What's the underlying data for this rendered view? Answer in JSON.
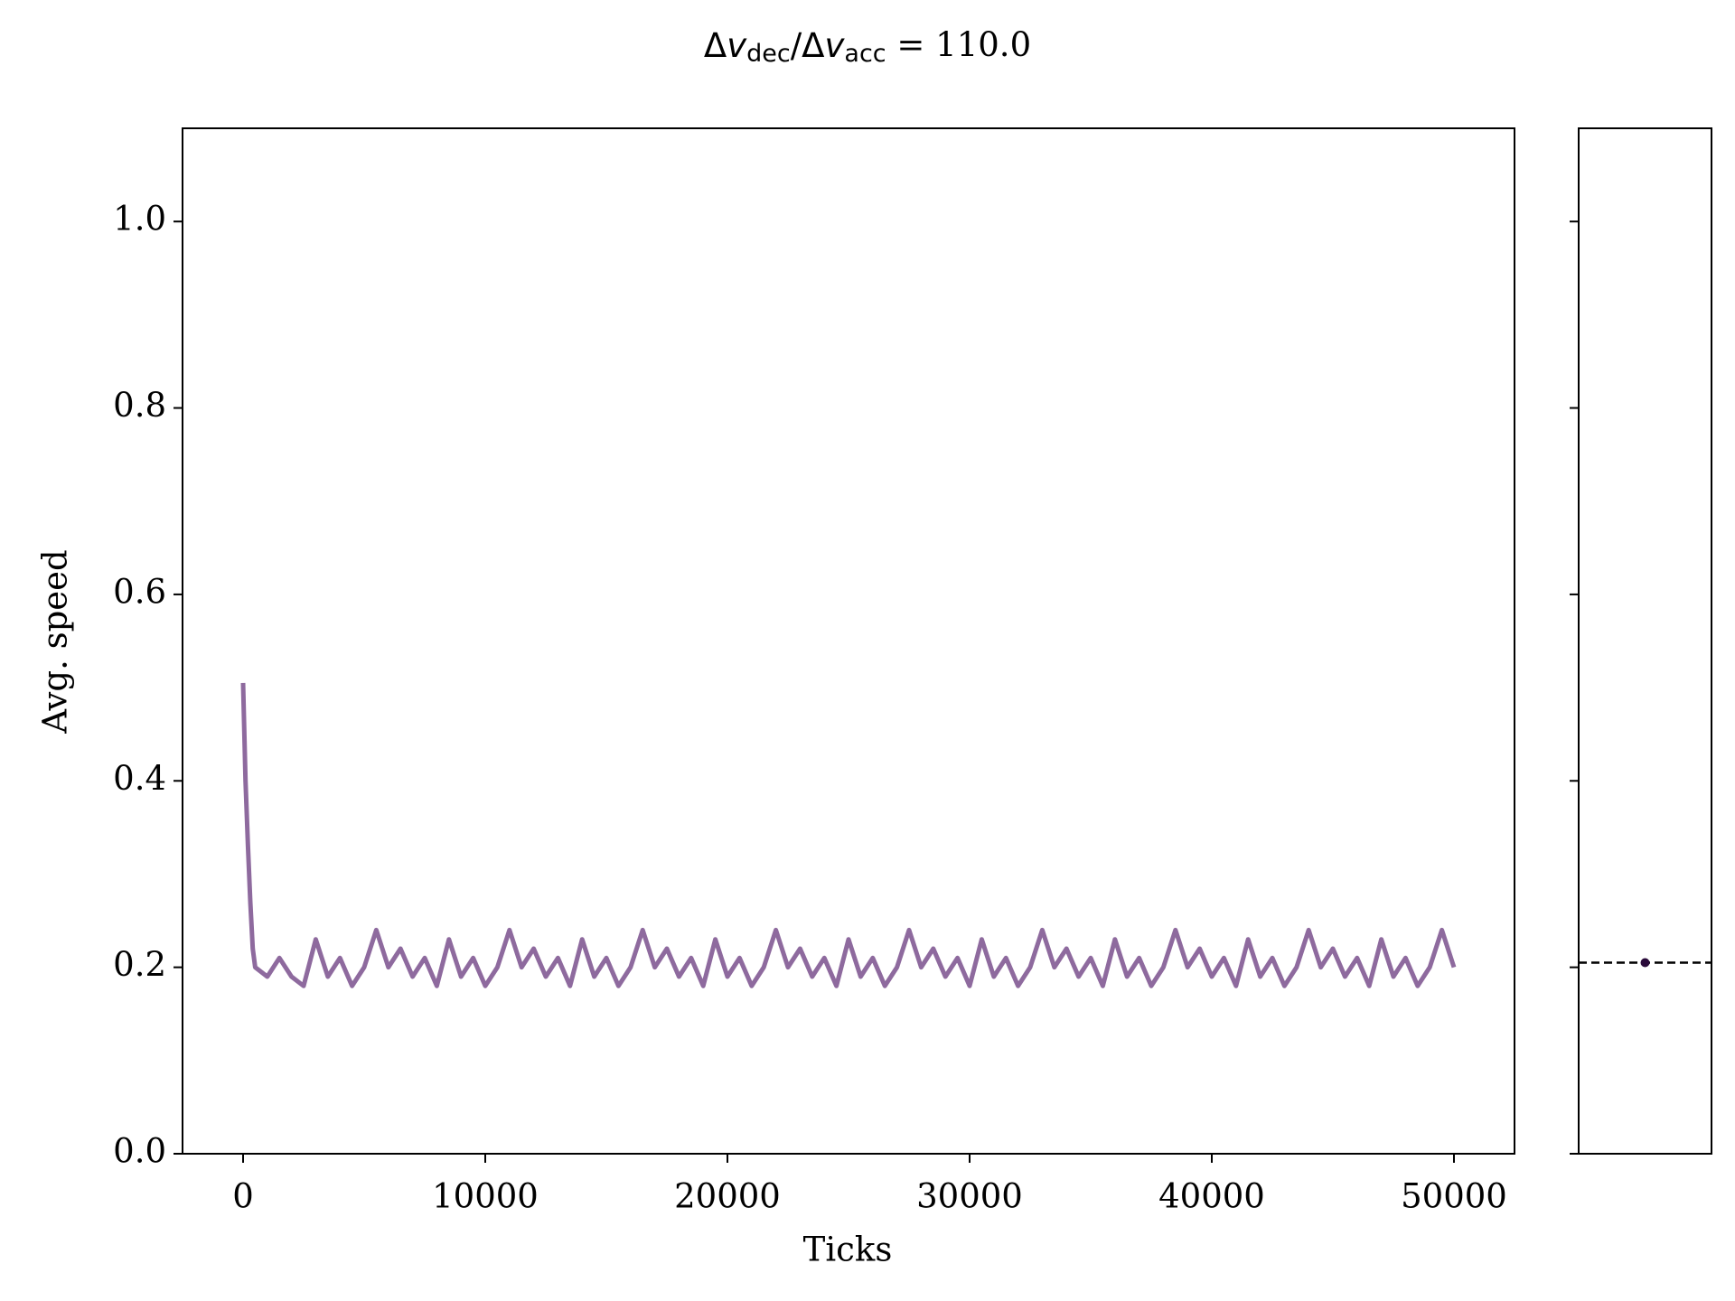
{
  "chart_data": [
    {
      "type": "line",
      "title": [
        "Δ",
        "v",
        "dec",
        "/Δ",
        "v",
        "acc",
        " = 110.0"
      ],
      "x_label": "Ticks",
      "y_label": "Avg. speed",
      "x": [
        0,
        100,
        200,
        300,
        400,
        500,
        1000,
        1500,
        2000,
        2500,
        3000,
        3500,
        4000,
        4500,
        5000,
        5500,
        6000,
        6500,
        7000,
        7500,
        8000,
        8500,
        9000,
        9500,
        10000,
        10500,
        11000,
        11500,
        12000,
        12500,
        13000,
        13500,
        14000,
        14500,
        15000,
        15500,
        16000,
        16500,
        17000,
        17500,
        18000,
        18500,
        19000,
        19500,
        20000,
        20500,
        21000,
        21500,
        22000,
        22500,
        23000,
        23500,
        24000,
        24500,
        25000,
        25500,
        26000,
        26500,
        27000,
        27500,
        28000,
        28500,
        29000,
        29500,
        30000,
        30500,
        31000,
        31500,
        32000,
        32500,
        33000,
        33500,
        34000,
        34500,
        35000,
        35500,
        36000,
        36500,
        37000,
        37500,
        38000,
        38500,
        39000,
        39500,
        40000,
        40500,
        41000,
        41500,
        42000,
        42500,
        43000,
        43500,
        44000,
        44500,
        45000,
        45500,
        46000,
        46500,
        47000,
        47500,
        48000,
        48500,
        49000,
        49500,
        50000
      ],
      "series": [
        {
          "color": "#8e6a9e",
          "values": [
            0.505,
            0.4,
            0.33,
            0.27,
            0.22,
            0.2,
            0.19,
            0.21,
            0.19,
            0.18,
            0.23,
            0.19,
            0.21,
            0.18,
            0.2,
            0.24,
            0.2,
            0.22,
            0.19,
            0.21,
            0.18,
            0.23,
            0.19,
            0.21,
            0.18,
            0.2,
            0.24,
            0.2,
            0.22,
            0.19,
            0.21,
            0.18,
            0.23,
            0.19,
            0.21,
            0.18,
            0.2,
            0.24,
            0.2,
            0.22,
            0.19,
            0.21,
            0.18,
            0.23,
            0.19,
            0.21,
            0.18,
            0.2,
            0.24,
            0.2,
            0.22,
            0.19,
            0.21,
            0.18,
            0.23,
            0.19,
            0.21,
            0.18,
            0.2,
            0.24,
            0.2,
            0.22,
            0.19,
            0.21,
            0.18,
            0.23,
            0.19,
            0.21,
            0.18,
            0.2,
            0.24,
            0.2,
            0.22,
            0.19,
            0.21,
            0.18,
            0.23,
            0.19,
            0.21,
            0.18,
            0.2,
            0.24,
            0.2,
            0.22,
            0.19,
            0.21,
            0.18,
            0.23,
            0.19,
            0.21,
            0.18,
            0.2,
            0.24,
            0.2,
            0.22,
            0.19,
            0.21,
            0.18,
            0.23,
            0.19,
            0.21,
            0.18,
            0.2,
            0.24,
            0.2
          ]
        }
      ],
      "xlim": [
        -2500,
        52500
      ],
      "xticks": [
        0,
        10000,
        20000,
        30000,
        40000,
        50000
      ],
      "ylim": [
        0,
        1.1
      ],
      "yticks": [
        {
          "value": 0,
          "label": "0.0"
        },
        {
          "value": 0.2,
          "label": "0.2"
        },
        {
          "value": 0.4,
          "label": "0.4"
        },
        {
          "value": 0.6,
          "label": "0.6"
        },
        {
          "value": 0.8,
          "label": "0.8"
        },
        {
          "value": 1.0,
          "label": "1.0"
        }
      ]
    },
    {
      "type": "point",
      "values": [
        0.205
      ],
      "color": "#2a0a3a",
      "mean_line": 0.205,
      "ylim": [
        0,
        1.1
      ]
    }
  ]
}
